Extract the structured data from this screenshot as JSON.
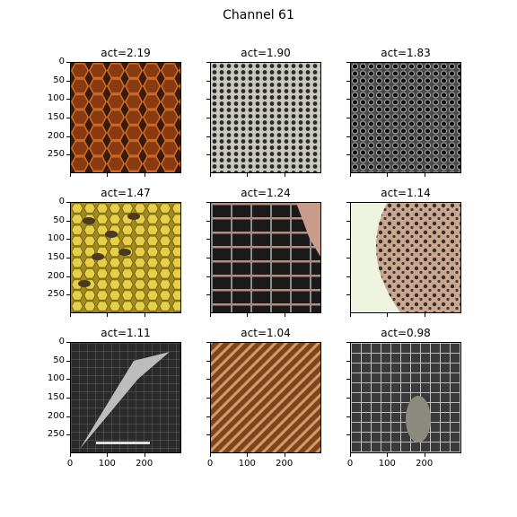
{
  "suptitle": "Channel 61",
  "chart_data": {
    "type": "image_grid",
    "title": "Channel 61",
    "rows": 3,
    "cols": 3,
    "panels": [
      {
        "title": "act=2.19",
        "act": 2.19,
        "content": "honeycomb-rust"
      },
      {
        "title": "act=1.90",
        "act": 1.9,
        "content": "perforated-metal"
      },
      {
        "title": "act=1.83",
        "act": 1.83,
        "content": "perforated-dark-metal"
      },
      {
        "title": "act=1.47",
        "act": 1.47,
        "content": "bees-on-honeycomb"
      },
      {
        "title": "act=1.24",
        "act": 1.24,
        "content": "building-grid"
      },
      {
        "title": "act=1.14",
        "act": 1.14,
        "content": "sponge"
      },
      {
        "title": "act=1.11",
        "act": 1.11,
        "content": "grid-sketch"
      },
      {
        "title": "act=1.04",
        "act": 1.04,
        "content": "copper-coils"
      },
      {
        "title": "act=0.98",
        "act": 0.98,
        "content": "monkey-cage"
      }
    ],
    "y_ticks": [
      "0",
      "50",
      "100",
      "150",
      "200",
      "250"
    ],
    "x_ticks": [
      "0",
      "100",
      "200"
    ]
  }
}
